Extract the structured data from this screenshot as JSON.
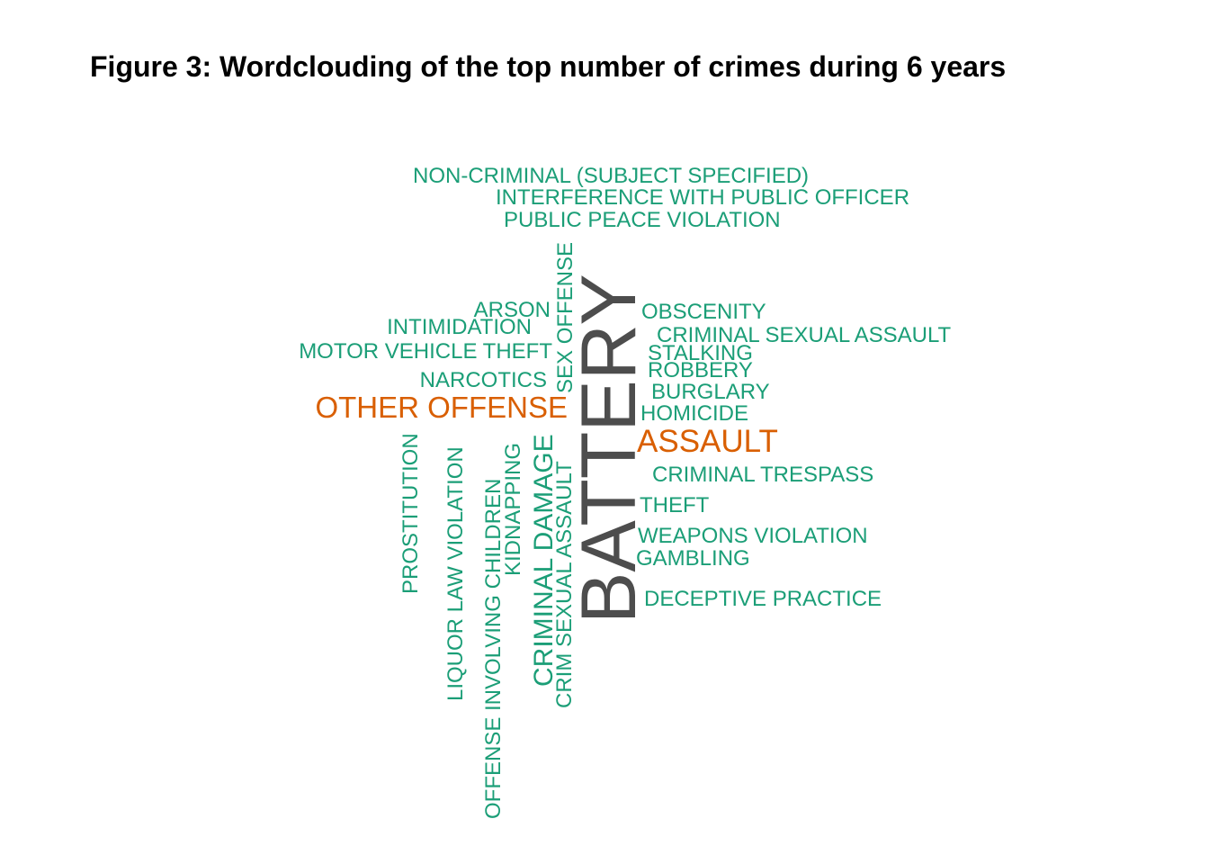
{
  "chart_data": {
    "type": "wordcloud",
    "title": "Figure 3: Wordclouding of the top number of crimes during 6 years",
    "colors": {
      "top": "#4d4d4d",
      "high": "#d95f02",
      "other": "#1b9e77"
    },
    "words": [
      {
        "text": "NON-CRIMINAL (SUBJECT SPECIFIED)",
        "tier": "other",
        "rotated": false
      },
      {
        "text": "INTERFERENCE WITH PUBLIC OFFICER",
        "tier": "other",
        "rotated": false
      },
      {
        "text": "PUBLIC PEACE VIOLATION",
        "tier": "other",
        "rotated": false
      },
      {
        "text": "ARSON",
        "tier": "other",
        "rotated": false
      },
      {
        "text": "INTIMIDATION",
        "tier": "other",
        "rotated": false
      },
      {
        "text": "MOTOR VEHICLE THEFT",
        "tier": "other",
        "rotated": false
      },
      {
        "text": "NARCOTICS",
        "tier": "other",
        "rotated": false
      },
      {
        "text": "OTHER OFFENSE",
        "tier": "high",
        "rotated": false
      },
      {
        "text": "SEX OFFENSE",
        "tier": "other",
        "rotated": true
      },
      {
        "text": "BATTERY",
        "tier": "top",
        "rotated": true
      },
      {
        "text": "OBSCENITY",
        "tier": "other",
        "rotated": false
      },
      {
        "text": "CRIMINAL SEXUAL ASSAULT",
        "tier": "other",
        "rotated": false
      },
      {
        "text": "STALKING",
        "tier": "other",
        "rotated": false
      },
      {
        "text": "ROBBERY",
        "tier": "other",
        "rotated": false
      },
      {
        "text": "BURGLARY",
        "tier": "other",
        "rotated": false
      },
      {
        "text": "HOMICIDE",
        "tier": "other",
        "rotated": false
      },
      {
        "text": "ASSAULT",
        "tier": "high",
        "rotated": false
      },
      {
        "text": "CRIMINAL TRESPASS",
        "tier": "other",
        "rotated": false
      },
      {
        "text": "THEFT",
        "tier": "other",
        "rotated": false
      },
      {
        "text": "WEAPONS VIOLATION",
        "tier": "other",
        "rotated": false
      },
      {
        "text": "GAMBLING",
        "tier": "other",
        "rotated": false
      },
      {
        "text": "DECEPTIVE PRACTICE",
        "tier": "other",
        "rotated": false
      },
      {
        "text": "PROSTITUTION",
        "tier": "other",
        "rotated": true
      },
      {
        "text": "LIQUOR LAW VIOLATION",
        "tier": "other",
        "rotated": true
      },
      {
        "text": "OFFENSE INVOLVING CHILDREN",
        "tier": "other",
        "rotated": true
      },
      {
        "text": "KIDNAPPING",
        "tier": "other",
        "rotated": true
      },
      {
        "text": "CRIMINAL DAMAGE",
        "tier": "other",
        "rotated": true
      },
      {
        "text": "CRIM SEXUAL ASSAULT",
        "tier": "other",
        "rotated": true
      }
    ]
  }
}
